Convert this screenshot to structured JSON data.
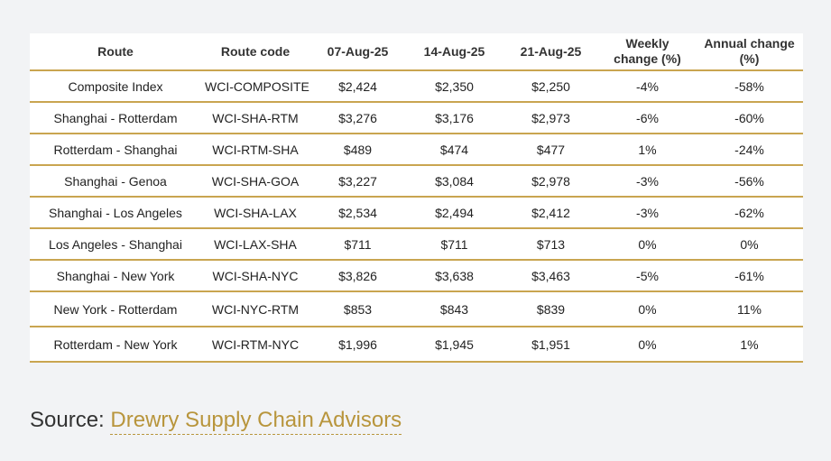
{
  "table": {
    "headers": [
      "Route",
      "Route code",
      "07-Aug-25",
      "14-Aug-25",
      "21-Aug-25",
      "Weekly change (%)",
      "Annual change (%)"
    ],
    "rows": [
      [
        "Composite Index",
        "WCI-COMPOSITE",
        "$2,424",
        "$2,350",
        "$2,250",
        "-4%",
        "-58%"
      ],
      [
        "Shanghai - Rotterdam",
        "WCI-SHA-RTM",
        "$3,276",
        "$3,176",
        "$2,973",
        "-6%",
        "-60%"
      ],
      [
        "Rotterdam - Shanghai",
        "WCI-RTM-SHA",
        "$489",
        "$474",
        "$477",
        "1%",
        "-24%"
      ],
      [
        "Shanghai - Genoa",
        "WCI-SHA-GOA",
        "$3,227",
        "$3,084",
        "$2,978",
        "-3%",
        "-56%"
      ],
      [
        "Shanghai - Los Angeles",
        "WCI-SHA-LAX",
        "$2,534",
        "$2,494",
        "$2,412",
        "-3%",
        "-62%"
      ],
      [
        "Los Angeles - Shanghai",
        "WCI-LAX-SHA",
        "$711",
        "$711",
        "$713",
        "0%",
        "0%"
      ],
      [
        "Shanghai - New York",
        "WCI-SHA-NYC",
        "$3,826",
        "$3,638",
        "$3,463",
        "-5%",
        "-61%"
      ],
      [
        "New York - Rotterdam",
        "WCI-NYC-RTM",
        "$853",
        "$843",
        "$839",
        "0%",
        "11%"
      ],
      [
        "Rotterdam - New York",
        "WCI-RTM-NYC",
        "$1,996",
        "$1,945",
        "$1,951",
        "0%",
        "1%"
      ]
    ]
  },
  "source": {
    "prefix": "Source: ",
    "link_text": "Drewry Supply Chain Advisors"
  },
  "colors": {
    "accent": "#c9a550",
    "link": "#b8953c",
    "background": "#f2f3f5"
  }
}
